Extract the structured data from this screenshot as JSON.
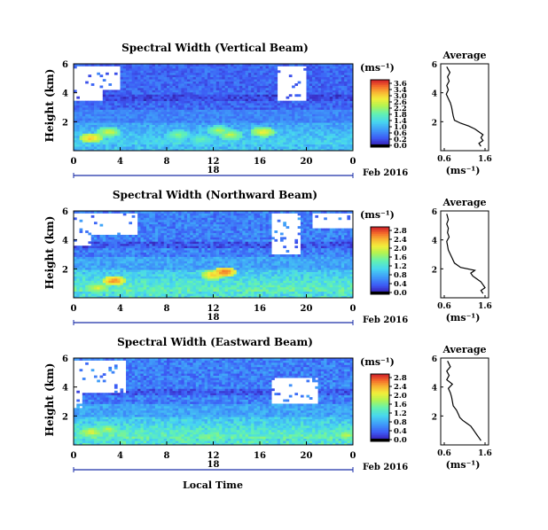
{
  "chart_data": [
    {
      "type": "heatmap",
      "title": "Spectral Width (Vertical Beam)",
      "ylabel": "Height (km)",
      "xticks": [
        "0",
        "4",
        "8",
        "12",
        "16",
        "20",
        "0"
      ],
      "date_label": "18",
      "month_label": "Feb 2016",
      "xlim_hours": [
        0,
        24
      ],
      "ylim_km": [
        0,
        6
      ],
      "yticks": [
        "2",
        "4",
        "6"
      ],
      "colorbar": {
        "unit": "(ms⁻¹)",
        "ticks": [
          "3.6",
          "3.4",
          "3.0",
          "2.6",
          "2.2",
          "1.8",
          "1.4",
          "1.0",
          "0.6",
          "0.2",
          "0.0"
        ],
        "range": [
          0.0,
          3.6
        ]
      },
      "average": {
        "title": "Average",
        "xlabel": "(ms⁻¹)",
        "xticks": [
          "0.6",
          "1.6"
        ],
        "yticks": [
          "2",
          "4",
          "6"
        ],
        "xlim": [
          0.6,
          1.6
        ]
      },
      "features": {
        "white_patches": [
          {
            "x0": 0.1,
            "x1": 4.0,
            "y0": 4.2,
            "y1": 5.9
          },
          {
            "x0": 0.1,
            "x1": 2.5,
            "y0": 3.4,
            "y1": 4.2
          },
          {
            "x0": 17.6,
            "x1": 20.0,
            "y0": 3.5,
            "y1": 5.9
          }
        ],
        "hot_spots": [
          {
            "x": 1.5,
            "y": 0.9,
            "v": 2.9
          },
          {
            "x": 3.0,
            "y": 1.3,
            "v": 2.4
          },
          {
            "x": 9.0,
            "y": 1.1,
            "v": 2.0
          },
          {
            "x": 12.5,
            "y": 1.4,
            "v": 2.2
          },
          {
            "x": 13.5,
            "y": 1.1,
            "v": 2.3
          },
          {
            "x": 16.3,
            "y": 1.3,
            "v": 2.6
          },
          {
            "x": 11.0,
            "y": 0.8,
            "v": 1.8
          }
        ],
        "profile": [
          [
            0.3,
            1.5
          ],
          [
            0.5,
            1.45
          ],
          [
            0.7,
            1.55
          ],
          [
            0.9,
            1.5
          ],
          [
            1.1,
            1.55
          ],
          [
            1.3,
            1.45
          ],
          [
            1.5,
            1.35
          ],
          [
            1.7,
            1.2
          ],
          [
            1.9,
            1.0
          ],
          [
            2.1,
            0.85
          ],
          [
            2.4,
            0.82
          ],
          [
            2.7,
            0.8
          ],
          [
            3.0,
            0.78
          ],
          [
            3.3,
            0.75
          ],
          [
            3.6,
            0.7
          ],
          [
            3.9,
            0.65
          ],
          [
            4.2,
            0.7
          ],
          [
            4.5,
            0.66
          ],
          [
            4.8,
            0.72
          ],
          [
            5.1,
            0.68
          ],
          [
            5.4,
            0.74
          ],
          [
            5.8,
            0.66
          ]
        ]
      }
    },
    {
      "type": "heatmap",
      "title": "Spectral Width (Northward Beam)",
      "ylabel": "Height (km)",
      "xticks": [
        "0",
        "4",
        "8",
        "12",
        "16",
        "20",
        "0"
      ],
      "date_label": "18",
      "month_label": "Feb 2016",
      "xlim_hours": [
        0,
        24
      ],
      "ylim_km": [
        0,
        6
      ],
      "yticks": [
        "2",
        "4",
        "6"
      ],
      "colorbar": {
        "unit": "(ms⁻¹)",
        "ticks": [
          "2.8",
          "2.4",
          "2.0",
          "1.6",
          "1.2",
          "0.8",
          "0.4",
          "0.0"
        ],
        "range": [
          0.0,
          2.8
        ]
      },
      "average": {
        "title": "Average",
        "xlabel": "(ms⁻¹)",
        "xticks": [
          "0.6",
          "1.6"
        ],
        "yticks": [
          "2",
          "4",
          "6"
        ],
        "xlim": [
          0.6,
          1.6
        ]
      },
      "features": {
        "white_patches": [
          {
            "x0": 0.1,
            "x1": 5.5,
            "y0": 4.4,
            "y1": 5.9
          },
          {
            "x0": 0.1,
            "x1": 1.5,
            "y0": 3.6,
            "y1": 4.4
          },
          {
            "x0": 17.0,
            "x1": 19.5,
            "y0": 3.0,
            "y1": 5.9
          },
          {
            "x0": 20.5,
            "x1": 24.0,
            "y0": 4.8,
            "y1": 5.9
          }
        ],
        "hot_spots": [
          {
            "x": 3.5,
            "y": 1.2,
            "v": 2.5
          },
          {
            "x": 13.0,
            "y": 1.8,
            "v": 2.6
          },
          {
            "x": 12.0,
            "y": 1.6,
            "v": 2.2
          },
          {
            "x": 2.0,
            "y": 0.7,
            "v": 1.9
          }
        ],
        "profile": [
          [
            0.3,
            1.55
          ],
          [
            0.5,
            1.5
          ],
          [
            0.7,
            1.6
          ],
          [
            0.9,
            1.55
          ],
          [
            1.1,
            1.5
          ],
          [
            1.3,
            1.4
          ],
          [
            1.5,
            1.3
          ],
          [
            1.7,
            1.25
          ],
          [
            1.9,
            1.35
          ],
          [
            2.1,
            1.0
          ],
          [
            2.4,
            0.85
          ],
          [
            2.7,
            0.8
          ],
          [
            3.0,
            0.75
          ],
          [
            3.3,
            0.7
          ],
          [
            3.6,
            0.68
          ],
          [
            3.9,
            0.66
          ],
          [
            4.2,
            0.72
          ],
          [
            4.5,
            0.68
          ],
          [
            4.8,
            0.7
          ],
          [
            5.1,
            0.66
          ],
          [
            5.4,
            0.7
          ],
          [
            5.8,
            0.66
          ]
        ]
      }
    },
    {
      "type": "heatmap",
      "title": "Spectral Width (Eastward Beam)",
      "ylabel": "Height (km)",
      "xticks": [
        "0",
        "4",
        "8",
        "12",
        "16",
        "20",
        "0"
      ],
      "date_label": "18",
      "month_label": "Feb 2016",
      "xlabel": "Local Time",
      "xlim_hours": [
        0,
        24
      ],
      "ylim_km": [
        0,
        6
      ],
      "yticks": [
        "2",
        "4",
        "6"
      ],
      "colorbar": {
        "unit": "(ms⁻¹)",
        "ticks": [
          "2.8",
          "2.4",
          "2.0",
          "1.6",
          "1.2",
          "0.8",
          "0.4",
          "0.0"
        ],
        "range": [
          0.0,
          2.8
        ]
      },
      "average": {
        "title": "Average",
        "xlabel": "(ms⁻¹)",
        "xticks": [
          "0.6",
          "1.6"
        ],
        "yticks": [
          "2",
          "4",
          "6"
        ],
        "xlim": [
          0.6,
          1.6
        ]
      },
      "features": {
        "white_patches": [
          {
            "x0": 0.1,
            "x1": 4.5,
            "y0": 3.6,
            "y1": 5.9
          },
          {
            "x0": 17.0,
            "x1": 21.0,
            "y0": 2.8,
            "y1": 4.6
          },
          {
            "x0": 0.1,
            "x1": 0.8,
            "y0": 2.6,
            "y1": 3.6
          }
        ],
        "hot_spots": [
          {
            "x": 1.5,
            "y": 0.9,
            "v": 1.9
          },
          {
            "x": 3.0,
            "y": 1.1,
            "v": 1.7
          },
          {
            "x": 23.5,
            "y": 0.7,
            "v": 1.7
          }
        ],
        "profile": [
          [
            0.3,
            1.5
          ],
          [
            0.5,
            1.45
          ],
          [
            0.7,
            1.4
          ],
          [
            0.9,
            1.35
          ],
          [
            1.1,
            1.3
          ],
          [
            1.3,
            1.25
          ],
          [
            1.5,
            1.15
          ],
          [
            1.7,
            1.05
          ],
          [
            1.9,
            0.98
          ],
          [
            2.1,
            0.95
          ],
          [
            2.4,
            0.9
          ],
          [
            2.7,
            0.82
          ],
          [
            3.0,
            0.8
          ],
          [
            3.3,
            0.78
          ],
          [
            3.6,
            0.75
          ],
          [
            3.9,
            0.7
          ],
          [
            4.2,
            0.8
          ],
          [
            4.5,
            0.66
          ],
          [
            4.8,
            0.72
          ],
          [
            5.1,
            0.66
          ],
          [
            5.4,
            0.75
          ],
          [
            5.8,
            0.68
          ]
        ]
      }
    }
  ]
}
